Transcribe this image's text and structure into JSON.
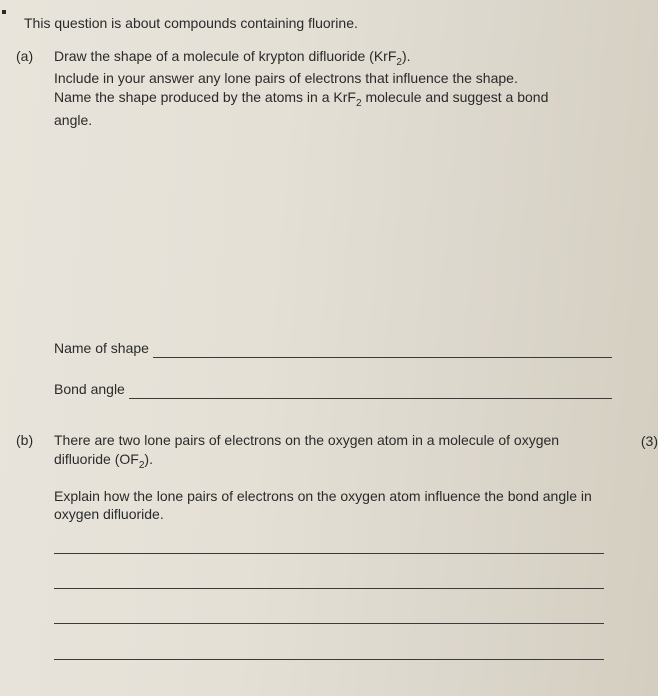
{
  "colors": {
    "text": "#2a2a2a",
    "line": "#3a3a3a",
    "bg_left": "#e8e4db",
    "bg_right": "#d4cec0"
  },
  "font": {
    "family": "Arial",
    "size_pt": 14,
    "line_height": 1.35
  },
  "intro": "This question is about compounds containing fluorine.",
  "parts": {
    "a": {
      "label": "(a)",
      "lines": [
        "Draw the shape of a molecule of krypton difluoride (KrF",
        "Include in your answer any lone pairs of electrons that influence the shape.",
        "Name the shape produced by the atoms in a KrF",
        "angle."
      ],
      "formula1_sub": "2",
      "formula1_tail": ").",
      "formula2_sub": "2",
      "formula2_tail": " molecule and suggest a bond",
      "name_of_shape_label": "Name of shape",
      "bond_angle_label": "Bond angle",
      "marks": "(3)"
    },
    "b": {
      "label": "(b)",
      "para1_pre": "There are two lone pairs of electrons on the oxygen atom in a molecule of oxygen difluoride (OF",
      "para1_sub": "2",
      "para1_tail": ").",
      "para2": "Explain how the lone pairs of electrons on the oxygen atom influence the bond angle in oxygen difluoride.",
      "answer_line_count": 4
    }
  }
}
